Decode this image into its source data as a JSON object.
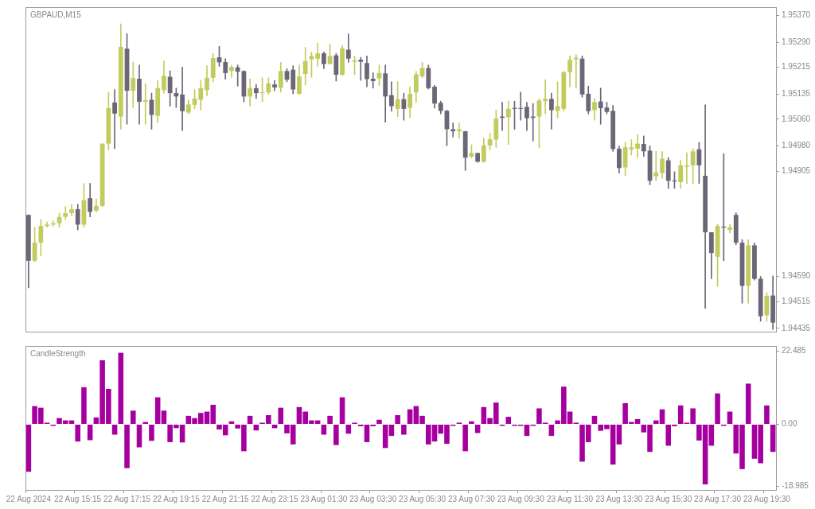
{
  "chart_data": [
    {
      "type": "candlestick",
      "title": "GBPAUD,M15",
      "categories": [
        null,
        null,
        null,
        null,
        null,
        null,
        null,
        null,
        null,
        null,
        null,
        null,
        null,
        null,
        null,
        null,
        null,
        null,
        null,
        null,
        null,
        null,
        null,
        null,
        null,
        null,
        null,
        null,
        null,
        null,
        null,
        null,
        null,
        null,
        null,
        null,
        null,
        null,
        null,
        null,
        null,
        null,
        null,
        null,
        null,
        null,
        null,
        null,
        null,
        null,
        null,
        null,
        null,
        null,
        null,
        null,
        null,
        null,
        null,
        null,
        null,
        null,
        null,
        null,
        null,
        null,
        null,
        null,
        null,
        null,
        null,
        null,
        null,
        null,
        null,
        null,
        null,
        null,
        null,
        null,
        null,
        null,
        null,
        null,
        null,
        null,
        null,
        null,
        null,
        null,
        null,
        null,
        null,
        null,
        null,
        null,
        null,
        null,
        null,
        null,
        null,
        null,
        null,
        null,
        null,
        null,
        null,
        null,
        null,
        null,
        null,
        null,
        null,
        null,
        null,
        null,
        null,
        null,
        null,
        null,
        null,
        null
      ],
      "ohlc": [
        [
          1.94774,
          1.94774,
          1.94556,
          1.94637
        ],
        [
          1.94637,
          1.94737,
          1.94634,
          1.94691
        ],
        [
          1.94691,
          1.9476,
          1.94652,
          1.94741
        ],
        [
          1.94741,
          1.94753,
          1.94737,
          1.94745
        ],
        [
          1.94745,
          1.94756,
          1.9474,
          1.94749
        ],
        [
          1.94749,
          1.94779,
          1.94737,
          1.94768
        ],
        [
          1.94768,
          1.94799,
          1.9476,
          1.94779
        ],
        [
          1.94779,
          1.94806,
          1.94772,
          1.94791
        ],
        [
          1.94791,
          1.94806,
          1.94729,
          1.94745
        ],
        [
          1.94745,
          1.94868,
          1.94737,
          1.94818
        ],
        [
          1.94824,
          1.94868,
          1.94768,
          1.94783
        ],
        [
          1.94787,
          1.94822,
          1.94783,
          1.94801
        ],
        [
          1.94801,
          1.94987,
          1.94799,
          1.94987
        ],
        [
          1.94987,
          1.95141,
          1.94968,
          1.95093
        ],
        [
          1.9511,
          1.95149,
          1.94972,
          1.95077
        ],
        [
          1.95068,
          1.95345,
          1.9503,
          1.95276
        ],
        [
          1.95271,
          1.95316,
          1.95045,
          1.95145
        ],
        [
          1.95145,
          1.95231,
          1.95095,
          1.95183
        ],
        [
          1.95181,
          1.95222,
          1.95045,
          1.95112
        ],
        [
          1.95112,
          1.95167,
          1.95045,
          1.95117
        ],
        [
          1.95118,
          1.95138,
          1.9503,
          1.95073
        ],
        [
          1.9507,
          1.95176,
          1.95049,
          1.95153
        ],
        [
          1.95147,
          1.95234,
          1.95138,
          1.9519
        ],
        [
          1.95187,
          1.95205,
          1.95099,
          1.95138
        ],
        [
          1.95138,
          1.95153,
          1.95095,
          1.95128
        ],
        [
          1.95134,
          1.95216,
          1.95026,
          1.95084
        ],
        [
          1.9508,
          1.95118,
          1.95076,
          1.95104
        ],
        [
          1.95103,
          1.95149,
          1.95091,
          1.95122
        ],
        [
          1.95118,
          1.95176,
          1.95087,
          1.95153
        ],
        [
          1.95147,
          1.9522,
          1.9513,
          1.95184
        ],
        [
          1.95184,
          1.95257,
          1.95172,
          1.95243
        ],
        [
          1.95245,
          1.95278,
          1.95218,
          1.9523
        ],
        [
          1.95231,
          1.95241,
          1.9518,
          1.95198
        ],
        [
          1.95204,
          1.95222,
          1.95185,
          1.95216
        ],
        [
          1.95215,
          1.95222,
          1.95159,
          1.95202
        ],
        [
          1.95204,
          1.95205,
          1.95112,
          1.95128
        ],
        [
          1.95128,
          1.9518,
          1.95099,
          1.95153
        ],
        [
          1.95153,
          1.95164,
          1.95122,
          1.95138
        ],
        [
          1.95138,
          1.95184,
          1.95112,
          1.95141
        ],
        [
          1.9514,
          1.95184,
          1.95134,
          1.95167
        ],
        [
          1.95164,
          1.95176,
          1.95145,
          1.95155
        ],
        [
          1.95154,
          1.9523,
          1.95141,
          1.95204
        ],
        [
          1.95204,
          1.95211,
          1.95172,
          1.95178
        ],
        [
          1.95208,
          1.9522,
          1.95136,
          1.95149
        ],
        [
          1.95136,
          1.95222,
          1.95134,
          1.95188
        ],
        [
          1.95195,
          1.95275,
          1.95162,
          1.95234
        ],
        [
          1.95239,
          1.95261,
          1.95185,
          1.95249
        ],
        [
          1.95241,
          1.95288,
          1.95218,
          1.95257
        ],
        [
          1.95257,
          1.95261,
          1.95211,
          1.95225
        ],
        [
          1.95225,
          1.95285,
          1.95225,
          1.95249
        ],
        [
          1.95251,
          1.95257,
          1.95174,
          1.95193
        ],
        [
          1.95193,
          1.9528,
          1.95191,
          1.95272
        ],
        [
          1.95268,
          1.95315,
          1.9523,
          1.95241
        ],
        [
          1.95232,
          1.95249,
          1.95193,
          1.95236
        ],
        [
          1.95238,
          1.95245,
          1.95176,
          1.95232
        ],
        [
          1.95228,
          1.95249,
          1.95157,
          1.9518
        ],
        [
          1.95181,
          1.95199,
          1.95153,
          1.95174
        ],
        [
          1.95182,
          1.95222,
          1.95161,
          1.95198
        ],
        [
          1.95197,
          1.95222,
          1.95051,
          1.95128
        ],
        [
          1.95132,
          1.95172,
          1.95084,
          1.95099
        ],
        [
          1.95091,
          1.95172,
          1.95068,
          1.9512
        ],
        [
          1.9512,
          1.95138,
          1.95057,
          1.95091
        ],
        [
          1.95094,
          1.95157,
          1.95064,
          1.95136
        ],
        [
          1.9514,
          1.95203,
          1.95111,
          1.95194
        ],
        [
          1.95188,
          1.9523,
          1.95184,
          1.95213
        ],
        [
          1.95213,
          1.95222,
          1.9515,
          1.95153
        ],
        [
          1.95157,
          1.95161,
          1.95093,
          1.95107
        ],
        [
          1.95109,
          1.95114,
          1.95076,
          1.95085
        ],
        [
          1.95085,
          1.95087,
          1.94981,
          1.9503
        ],
        [
          1.9503,
          1.95049,
          1.95007,
          1.95024
        ],
        [
          1.95024,
          1.95049,
          1.95003,
          1.9503
        ],
        [
          1.95024,
          1.95024,
          1.94907,
          1.94945
        ],
        [
          1.94948,
          1.94984,
          1.94945,
          1.94959
        ],
        [
          1.94959,
          1.94959,
          1.94931,
          1.94933
        ],
        [
          1.94933,
          1.95003,
          1.94931,
          1.94982
        ],
        [
          1.94982,
          1.95018,
          1.94968,
          1.95
        ],
        [
          1.94999,
          1.95087,
          1.94976,
          1.95062
        ],
        [
          1.95068,
          1.95111,
          1.95026,
          1.95064
        ],
        [
          1.95066,
          1.95114,
          1.94984,
          1.95091
        ],
        [
          1.95094,
          1.95114,
          1.9503,
          1.95091
        ],
        [
          1.95093,
          1.95141,
          1.95057,
          1.95091
        ],
        [
          1.95097,
          1.95111,
          1.95026,
          1.95063
        ],
        [
          1.95068,
          1.95107,
          1.94995,
          1.95064
        ],
        [
          1.95068,
          1.95121,
          1.94974,
          1.95116
        ],
        [
          1.95114,
          1.95178,
          1.95076,
          1.95121
        ],
        [
          1.95121,
          1.95138,
          1.9503,
          1.95087
        ],
        [
          1.95085,
          1.95172,
          1.95064,
          1.95099
        ],
        [
          1.95091,
          1.95203,
          1.95084,
          1.95201
        ],
        [
          1.95201,
          1.95249,
          1.95157,
          1.95238
        ],
        [
          1.95239,
          1.95253,
          1.95153,
          1.95244
        ],
        [
          1.95241,
          1.95249,
          1.95126,
          1.95134
        ],
        [
          1.95136,
          1.95159,
          1.95076,
          1.95084
        ],
        [
          1.95087,
          1.95122,
          1.95057,
          1.95111
        ],
        [
          1.95113,
          1.95153,
          1.95045,
          1.95093
        ],
        [
          1.95095,
          1.95111,
          1.95076,
          1.95082
        ],
        [
          1.95085,
          1.95101,
          1.94964,
          1.94971
        ],
        [
          1.94972,
          1.9498,
          1.94899,
          1.94914
        ],
        [
          1.94916,
          1.94991,
          1.94891,
          1.94976
        ],
        [
          1.9497,
          1.94999,
          1.94953,
          1.94976
        ],
        [
          1.94972,
          1.95014,
          1.94945,
          1.94987
        ],
        [
          1.94986,
          1.9501,
          1.94949,
          1.94964
        ],
        [
          1.94966,
          1.9498,
          1.94864,
          1.94876
        ],
        [
          1.94889,
          1.94964,
          1.94876,
          1.94901
        ],
        [
          1.94899,
          1.94964,
          1.94883,
          1.94942
        ],
        [
          1.94937,
          1.94945,
          1.94853,
          1.94876
        ],
        [
          1.94877,
          1.94903,
          1.94853,
          1.94874
        ],
        [
          1.94872,
          1.94937,
          1.94853,
          1.94922
        ],
        [
          1.94918,
          1.9496,
          1.94868,
          1.94922
        ],
        [
          1.94922,
          1.94972,
          1.94868,
          1.94964
        ],
        [
          1.9497,
          1.94991,
          1.94868,
          1.94922
        ],
        [
          1.94891,
          1.95103,
          1.94495,
          1.94722
        ],
        [
          1.94722,
          1.94722,
          1.94583,
          1.9466
        ],
        [
          1.94649,
          1.94745,
          1.9456,
          1.94741
        ],
        [
          1.94739,
          1.94957,
          1.94637,
          1.94736
        ],
        [
          1.94729,
          1.94745,
          1.9472,
          1.94737
        ],
        [
          1.94774,
          1.9478,
          1.94685,
          1.94691
        ],
        [
          1.94691,
          1.947,
          1.9451,
          1.94562
        ],
        [
          1.94562,
          1.947,
          1.9451,
          1.94683
        ],
        [
          1.94683,
          1.9469,
          1.94579,
          1.94583
        ],
        [
          1.94583,
          1.9459,
          1.94456,
          1.94471
        ],
        [
          1.94474,
          1.94541,
          1.94456,
          1.94532
        ],
        [
          1.94533,
          1.94591,
          1.94432,
          1.94452
        ]
      ],
      "colors": [
        "#6b6777",
        "#c2cc5e",
        "#c2cc5e",
        "#c2cc5e",
        "#c2cc5e",
        "#c2cc5e",
        "#c2cc5e",
        "#c2cc5e",
        "#6b6777",
        "#c2cc5e",
        "#6b6777",
        "#c2cc5e",
        "#c2cc5e",
        "#c2cc5e",
        "#6b6777",
        "#c2cc5e",
        "#6b6777",
        "#c2cc5e",
        "#6b6777",
        "#c2cc5e",
        "#6b6777",
        "#c2cc5e",
        "#c2cc5e",
        "#6b6777",
        "#6b6777",
        "#6b6777",
        "#c2cc5e",
        "#c2cc5e",
        "#c2cc5e",
        "#c2cc5e",
        "#c2cc5e",
        "#6b6777",
        "#6b6777",
        "#c2cc5e",
        "#6b6777",
        "#6b6777",
        "#c2cc5e",
        "#6b6777",
        "#c2cc5e",
        "#c2cc5e",
        "#6b6777",
        "#c2cc5e",
        "#6b6777",
        "#6b6777",
        "#c2cc5e",
        "#c2cc5e",
        "#c2cc5e",
        "#c2cc5e",
        "#6b6777",
        "#c2cc5e",
        "#6b6777",
        "#c2cc5e",
        "#6b6777",
        "#c2cc5e",
        "#6b6777",
        "#6b6777",
        "#6b6777",
        "#c2cc5e",
        "#6b6777",
        "#6b6777",
        "#c2cc5e",
        "#6b6777",
        "#c2cc5e",
        "#c2cc5e",
        "#c2cc5e",
        "#6b6777",
        "#6b6777",
        "#6b6777",
        "#6b6777",
        "#6b6777",
        "#c2cc5e",
        "#6b6777",
        "#c2cc5e",
        "#6b6777",
        "#c2cc5e",
        "#c2cc5e",
        "#c2cc5e",
        "#6b6777",
        "#c2cc5e",
        "#6b6777",
        "#6b6777",
        "#6b6777",
        "#6b6777",
        "#c2cc5e",
        "#c2cc5e",
        "#6b6777",
        "#c2cc5e",
        "#c2cc5e",
        "#c2cc5e",
        "#c2cc5e",
        "#6b6777",
        "#6b6777",
        "#c2cc5e",
        "#6b6777",
        "#6b6777",
        "#6b6777",
        "#6b6777",
        "#c2cc5e",
        "#c2cc5e",
        "#c2cc5e",
        "#6b6777",
        "#6b6777",
        "#c2cc5e",
        "#c2cc5e",
        "#6b6777",
        "#6b6777",
        "#c2cc5e",
        "#c2cc5e",
        "#c2cc5e",
        "#6b6777",
        "#6b6777",
        "#6b6777",
        "#c2cc5e",
        "#6b6777",
        "#c2cc5e",
        "#6b6777",
        "#6b6777",
        "#c2cc5e",
        "#6b6777",
        "#6b6777",
        "#c2cc5e",
        "#6b6777"
      ],
      "ylim": [
        1.94425,
        1.95395
      ],
      "yticks": [
        {
          "value": 1.9537,
          "label": "1.95370"
        },
        {
          "value": 1.9529,
          "label": "1.95290"
        },
        {
          "value": 1.95215,
          "label": "1.95215"
        },
        {
          "value": 1.95135,
          "label": "1.95135"
        },
        {
          "value": 1.9506,
          "label": "1.95060"
        },
        {
          "value": 1.9498,
          "label": "1.94980"
        },
        {
          "value": 1.94905,
          "label": "1.94905"
        },
        {
          "value": 1.9459,
          "label": "1.94590"
        },
        {
          "value": 1.94515,
          "label": "1.94515"
        },
        {
          "value": 1.94435,
          "label": "1.94435"
        }
      ],
      "tick_labels": "y"
    },
    {
      "type": "bar",
      "title": "CandleStrength",
      "categories": [
        "22 Aug 2024",
        null,
        null,
        null,
        null,
        null,
        null,
        null,
        "22 Aug 15:15",
        null,
        null,
        null,
        null,
        null,
        null,
        null,
        "22 Aug 17:15",
        null,
        null,
        null,
        null,
        null,
        null,
        null,
        "22 Aug 19:15",
        null,
        null,
        null,
        null,
        null,
        null,
        null,
        "22 Aug 21:15",
        null,
        null,
        null,
        null,
        null,
        null,
        null,
        "22 Aug 23:15",
        null,
        null,
        null,
        null,
        null,
        null,
        null,
        "23 Aug 01:30",
        null,
        null,
        null,
        null,
        null,
        null,
        null,
        "23 Aug 03:30",
        null,
        null,
        null,
        null,
        null,
        null,
        null,
        "23 Aug 05:30",
        null,
        null,
        null,
        null,
        null,
        null,
        null,
        "23 Aug 07:30",
        null,
        null,
        null,
        null,
        null,
        null,
        null,
        "23 Aug 09:30",
        null,
        null,
        null,
        null,
        null,
        null,
        null,
        "23 Aug 11:30",
        null,
        null,
        null,
        null,
        null,
        null,
        null,
        "23 Aug 13:30",
        null,
        null,
        null,
        null,
        null,
        null,
        null,
        "23 Aug 15:30",
        null,
        null,
        null,
        null,
        null,
        null,
        null,
        "23 Aug 17:30",
        null,
        null,
        null,
        null,
        null,
        null,
        null,
        "23 Aug 19:30",
        null
      ],
      "values": [
        -14.6,
        5.6,
        5.1,
        0.2,
        -0.4,
        1.9,
        1.2,
        1.2,
        -5.3,
        11.4,
        -4.9,
        2.1,
        19.7,
        10.9,
        -3.2,
        22.0,
        -13.5,
        4.2,
        -7.1,
        0.7,
        -5.1,
        8.3,
        4.2,
        -5.5,
        -1.2,
        -5.6,
        2.6,
        1.9,
        3.5,
        3.9,
        6.0,
        -1.6,
        -3.4,
        0.9,
        -1.3,
        -8.3,
        2.6,
        -1.9,
        0.2,
        2.8,
        -1.2,
        5.1,
        -2.8,
        -6.2,
        5.3,
        3.9,
        1.2,
        1.2,
        -3.2,
        2.6,
        -6.4,
        8.3,
        -2.9,
        0.2,
        -0.6,
        -5.5,
        -0.6,
        1.4,
        -7.3,
        -3.6,
        2.8,
        -3.2,
        4.6,
        5.6,
        2.6,
        -6.2,
        -5.3,
        -2.9,
        -6.0,
        -0.4,
        0.5,
        -8.3,
        0.9,
        -2.7,
        5.3,
        1.9,
        6.7,
        -0.4,
        2.3,
        -0.4,
        -0.4,
        -3.6,
        -0.4,
        4.9,
        0.5,
        -3.6,
        1.2,
        11.6,
        3.9,
        0.5,
        -11.5,
        -5.5,
        2.6,
        -2.0,
        -1.5,
        -12.4,
        -6.2,
        6.5,
        0.7,
        1.6,
        -2.5,
        -8.5,
        1.2,
        4.6,
        -6.6,
        -0.6,
        5.8,
        0.2,
        4.9,
        -5.0,
        -18.5,
        -6.6,
        9.5,
        -0.4,
        3.9,
        -9.0,
        -13.8,
        12.5,
        -10.6,
        -12.0,
        5.8,
        -8.5
      ],
      "color": "#a5009f",
      "ylim": [
        -20.2,
        24.1
      ],
      "yticks": [
        22.485,
        {
          "value": 0,
          "label": "0.00"
        },
        -18.985
      ]
    }
  ]
}
